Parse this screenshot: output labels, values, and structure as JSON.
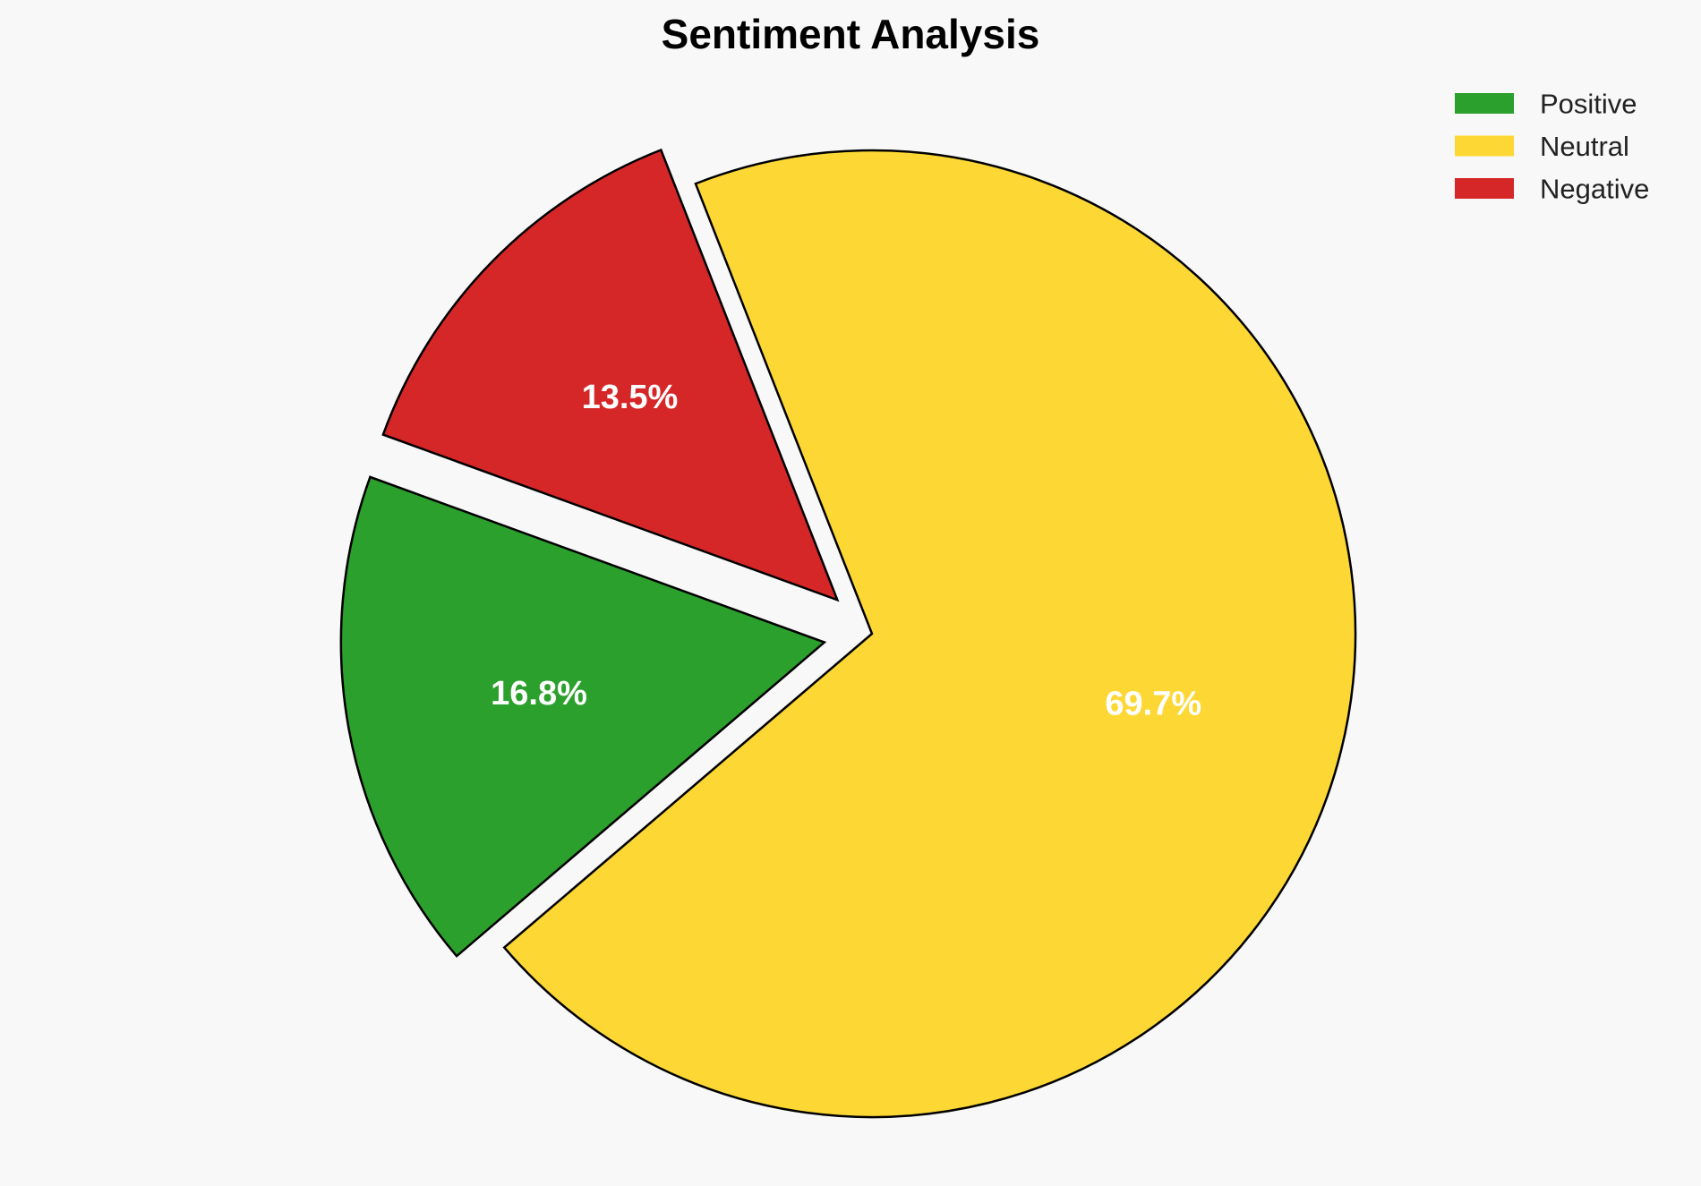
{
  "chart_data": {
    "type": "pie",
    "title": "Sentiment Analysis",
    "slices": [
      {
        "name": "Positive",
        "value": 16.8,
        "label": "16.8%",
        "color": "#2ca02c",
        "exploded": true
      },
      {
        "name": "Neutral",
        "value": 69.7,
        "label": "69.7%",
        "color": "#fdd835",
        "exploded": false
      },
      {
        "name": "Negative",
        "value": 13.5,
        "label": "13.5%",
        "color": "#d62728",
        "exploded": true
      }
    ],
    "legend": {
      "placement": "top-right",
      "entries": [
        "Positive",
        "Neutral",
        "Negative"
      ]
    },
    "edge_color": "#000000"
  }
}
